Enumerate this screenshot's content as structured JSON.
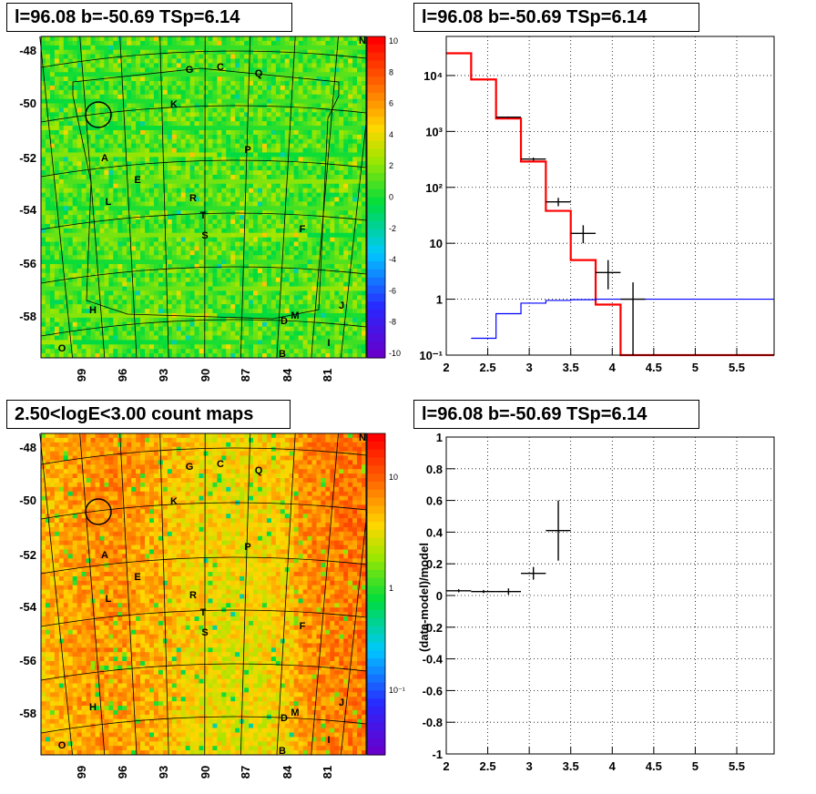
{
  "titles": {
    "tl": "l=96.08 b=-50.69 TSp=6.14",
    "tr": "l=96.08 b=-50.69 TSp=6.14",
    "bl": "2.50<logE<3.00 count maps",
    "br": "l=96.08 b=-50.69 TSp=6.14"
  },
  "maps": {
    "y_ticks": [
      "-48",
      "-50",
      "-52",
      "-54",
      "-56",
      "-58"
    ],
    "x_ticks": [
      "99",
      "96",
      "93",
      "90",
      "87",
      "84",
      "81"
    ],
    "letters": [
      "N",
      "G",
      "C",
      "Q",
      "K",
      "P",
      "A",
      "E",
      "L",
      "R",
      "T",
      "S",
      "F",
      "J",
      "H",
      "D",
      "M",
      "O",
      "B",
      "I"
    ],
    "top_colorbar_ticks": [
      "10",
      "8",
      "6",
      "4",
      "2",
      "0",
      "-2",
      "-4",
      "-6",
      "-8",
      "-10"
    ],
    "bottom_colorbar_ticks": [
      "10",
      "1",
      "10⁻¹"
    ]
  },
  "chart_data": [
    {
      "type": "line",
      "panel": "top-right",
      "x_ticks": [
        "2",
        "2.5",
        "3",
        "3.5",
        "4",
        "4.5",
        "5",
        "5.5"
      ],
      "y_ticks": [
        "10⁻¹",
        "1",
        "10",
        "10²",
        "10³",
        "10⁴"
      ],
      "xlim": [
        2,
        5.95
      ],
      "ylim": [
        0.1,
        50000
      ],
      "y_scale": "log",
      "grid": true,
      "series": [
        {
          "color": "#ff0000",
          "style": "step",
          "edges": [
            2.0,
            2.3,
            2.6,
            2.9,
            3.2,
            3.5,
            3.8,
            4.1,
            4.4,
            4.7,
            5.0,
            5.3,
            5.6,
            5.95
          ],
          "values": [
            25000,
            8500,
            1700,
            290,
            38,
            5,
            0.8,
            0.1,
            0.1,
            0.1,
            0.1,
            0.1,
            0.1
          ]
        },
        {
          "color": "#0000ff",
          "style": "step",
          "edges": [
            2.3,
            2.6,
            2.9,
            3.2,
            3.5,
            3.8,
            4.1,
            4.4,
            4.7,
            5.0,
            5.3,
            5.6,
            5.95
          ],
          "values": [
            0.2,
            0.55,
            0.85,
            0.95,
            0.98,
            1.0,
            1.0,
            1.0,
            1.0,
            1.0,
            1.0,
            1.0
          ]
        },
        {
          "color": "#000000",
          "style": "errorbar",
          "points": [
            {
              "x": 2.75,
              "y": 1800,
              "xerr": 0.15,
              "ylo": 1750,
              "yhi": 1850
            },
            {
              "x": 3.05,
              "y": 320,
              "xerr": 0.15,
              "ylo": 300,
              "yhi": 340
            },
            {
              "x": 3.35,
              "y": 55,
              "xerr": 0.15,
              "ylo": 46,
              "yhi": 65
            },
            {
              "x": 3.65,
              "y": 15,
              "xerr": 0.15,
              "ylo": 10,
              "yhi": 21
            },
            {
              "x": 3.95,
              "y": 3,
              "xerr": 0.15,
              "ylo": 1.5,
              "yhi": 5
            },
            {
              "x": 4.25,
              "y": 1,
              "xerr": 0.15,
              "ylo": 0.1,
              "yhi": 2
            }
          ]
        }
      ]
    },
    {
      "type": "scatter",
      "panel": "bottom-right",
      "ylabel": "(data-model)/model",
      "x_ticks": [
        "2",
        "2.5",
        "3",
        "3.5",
        "4",
        "4.5",
        "5",
        "5.5"
      ],
      "y_ticks": [
        "-1",
        "-0.8",
        "-0.6",
        "-0.4",
        "-0.2",
        "0",
        "0.2",
        "0.4",
        "0.6",
        "0.8",
        "1"
      ],
      "xlim": [
        2,
        5.95
      ],
      "ylim": [
        -1,
        1
      ],
      "grid": true,
      "points": [
        {
          "x": 2.15,
          "y": 0.03,
          "xerr": 0.15,
          "yerr": 0.01
        },
        {
          "x": 2.45,
          "y": 0.025,
          "xerr": 0.15,
          "yerr": 0.01
        },
        {
          "x": 2.75,
          "y": 0.025,
          "xerr": 0.15,
          "yerr": 0.02
        },
        {
          "x": 3.05,
          "y": 0.14,
          "xerr": 0.15,
          "yerr": 0.04
        },
        {
          "x": 3.35,
          "y": 0.41,
          "xerr": 0.15,
          "yerr": 0.19
        }
      ]
    }
  ]
}
